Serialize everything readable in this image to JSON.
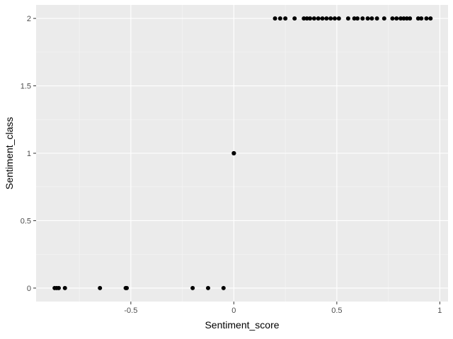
{
  "chart_data": {
    "type": "scatter",
    "title": "",
    "xlabel": "Sentiment_score",
    "ylabel": "Sentiment_class",
    "xlim": [
      -0.96,
      1.04
    ],
    "ylim": [
      -0.1,
      2.1
    ],
    "x_ticks": [
      -0.5,
      0,
      0.5,
      1
    ],
    "x_tick_labels": [
      "-0.5",
      "0",
      "0.5",
      "1"
    ],
    "y_ticks": [
      0,
      0.5,
      1,
      1.5,
      2
    ],
    "y_tick_labels": [
      "0",
      "0.5",
      "1",
      "1.5",
      "2"
    ],
    "grid": true,
    "legend": "none",
    "colors": {
      "panel": "#ebebeb",
      "grid_major": "#ffffff",
      "grid_minor": "#f5f5f5",
      "points": "#000000"
    },
    "points": [
      {
        "x": -0.87,
        "y": 0
      },
      {
        "x": -0.86,
        "y": 0
      },
      {
        "x": -0.85,
        "y": 0
      },
      {
        "x": -0.82,
        "y": 0
      },
      {
        "x": -0.65,
        "y": 0
      },
      {
        "x": -0.525,
        "y": 0
      },
      {
        "x": -0.52,
        "y": 0
      },
      {
        "x": -0.2,
        "y": 0
      },
      {
        "x": -0.125,
        "y": 0
      },
      {
        "x": -0.05,
        "y": 0
      },
      {
        "x": 0,
        "y": 1
      },
      {
        "x": 0,
        "y": 1
      },
      {
        "x": 0,
        "y": 1
      },
      {
        "x": 0.2,
        "y": 2
      },
      {
        "x": 0.225,
        "y": 2
      },
      {
        "x": 0.25,
        "y": 2
      },
      {
        "x": 0.295,
        "y": 2
      },
      {
        "x": 0.34,
        "y": 2
      },
      {
        "x": 0.355,
        "y": 2
      },
      {
        "x": 0.37,
        "y": 2
      },
      {
        "x": 0.39,
        "y": 2
      },
      {
        "x": 0.41,
        "y": 2
      },
      {
        "x": 0.43,
        "y": 2
      },
      {
        "x": 0.45,
        "y": 2
      },
      {
        "x": 0.47,
        "y": 2
      },
      {
        "x": 0.49,
        "y": 2
      },
      {
        "x": 0.51,
        "y": 2
      },
      {
        "x": 0.555,
        "y": 2
      },
      {
        "x": 0.585,
        "y": 2
      },
      {
        "x": 0.6,
        "y": 2
      },
      {
        "x": 0.625,
        "y": 2
      },
      {
        "x": 0.65,
        "y": 2
      },
      {
        "x": 0.67,
        "y": 2
      },
      {
        "x": 0.695,
        "y": 2
      },
      {
        "x": 0.73,
        "y": 2
      },
      {
        "x": 0.77,
        "y": 2
      },
      {
        "x": 0.79,
        "y": 2
      },
      {
        "x": 0.81,
        "y": 2
      },
      {
        "x": 0.825,
        "y": 2
      },
      {
        "x": 0.84,
        "y": 2
      },
      {
        "x": 0.855,
        "y": 2
      },
      {
        "x": 0.895,
        "y": 2
      },
      {
        "x": 0.91,
        "y": 2
      },
      {
        "x": 0.935,
        "y": 2
      },
      {
        "x": 0.955,
        "y": 2
      }
    ]
  }
}
